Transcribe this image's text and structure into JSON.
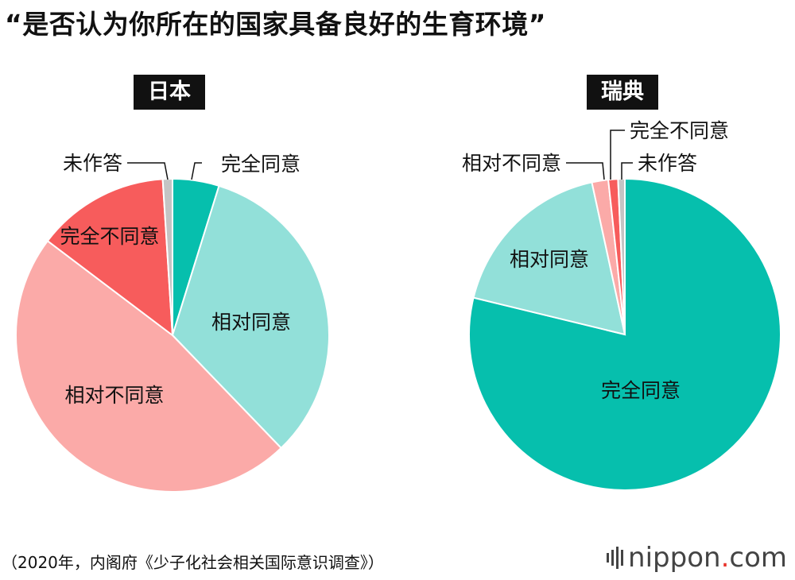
{
  "title": "“是否认为你所在的国家具备良好的生育环境”",
  "source": "（2020年，内阁府《少子化社会相关国际意识调查》）",
  "brand": {
    "name_main": "nippon",
    "name_dot": ".",
    "name_tld": "com"
  },
  "colors": {
    "完全同意": "#06bfad",
    "相对同意": "#92e0d9",
    "相对不同意": "#fbaaa8",
    "完全不同意": "#f75c5c",
    "未作答": "#c4c4c4"
  },
  "chart_data": [
    {
      "type": "pie",
      "title": "日本",
      "categories": [
        "完全同意",
        "相对同意",
        "相对不同意",
        "完全不同意",
        "未作答"
      ],
      "values": [
        4.8,
        33.0,
        47.5,
        13.7,
        1.0
      ],
      "unit": "%"
    },
    {
      "type": "pie",
      "title": "瑞典",
      "categories": [
        "完全同意",
        "相对同意",
        "相对不同意",
        "完全不同意",
        "未作答"
      ],
      "values": [
        78.8,
        17.8,
        1.7,
        1.0,
        0.7
      ],
      "unit": "%"
    }
  ]
}
